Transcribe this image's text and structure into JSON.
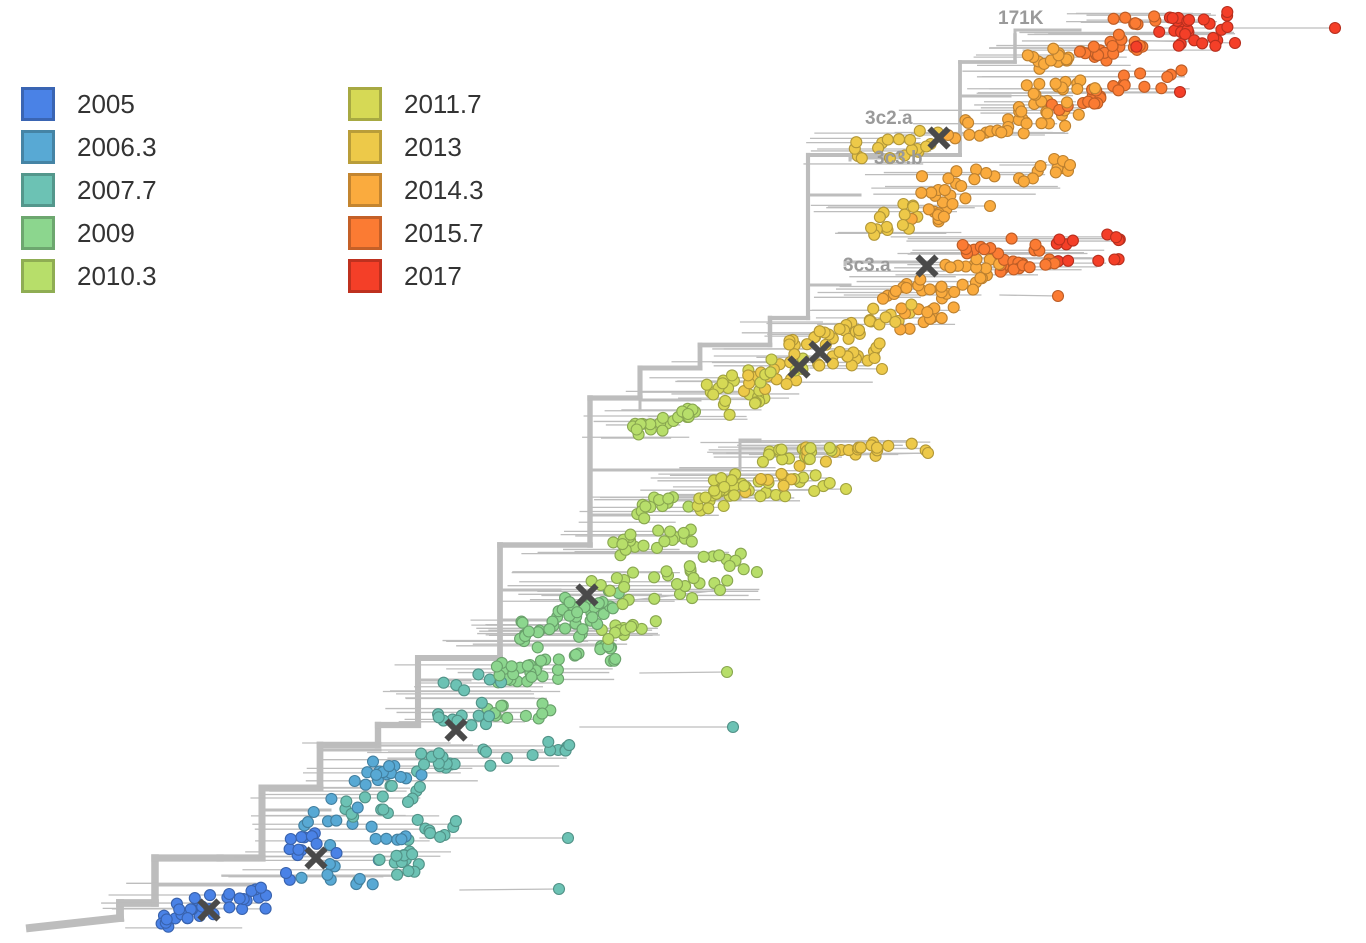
{
  "legend": {
    "items": [
      {
        "label": "2005",
        "color": "#4A82E6"
      },
      {
        "label": "2006.3",
        "color": "#58A9D4"
      },
      {
        "label": "2007.7",
        "color": "#6CC2B4"
      },
      {
        "label": "2009",
        "color": "#8CD68E"
      },
      {
        "label": "2010.3",
        "color": "#B7DE6A"
      },
      {
        "label": "2011.7",
        "color": "#D6D955"
      },
      {
        "label": "2013",
        "color": "#EDC949"
      },
      {
        "label": "2014.3",
        "color": "#FAAB3E"
      },
      {
        "label": "2015.7",
        "color": "#FB7B33"
      },
      {
        "label": "2017",
        "color": "#F43F28"
      }
    ]
  },
  "clade_labels": {
    "k171": "171K",
    "c3c2a": "3c2.a",
    "c3c3b": "3c3.b",
    "c3c3a": "3c3.a"
  },
  "colors": {
    "branch": "#BDBDBD",
    "mutation_marker": "#4A4A4A"
  }
}
